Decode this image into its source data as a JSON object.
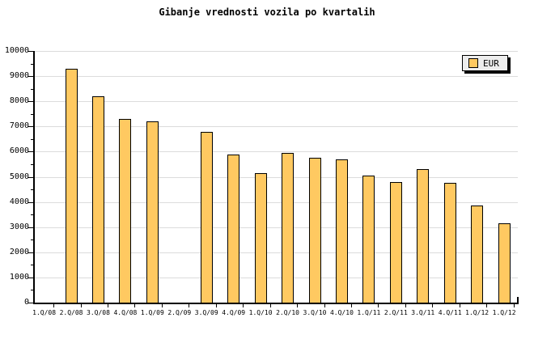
{
  "title": "Gibanje vrednosti vozila po kvartalih",
  "legend": {
    "label": "EUR",
    "position": "top-right"
  },
  "colors": {
    "background": "#FFFFFF",
    "bar_fill": "#FFC961",
    "bar_border": "#000000",
    "gridline": "#DCDCDC",
    "axis": "#000000",
    "legend_bg": "#EDEDED",
    "legend_shadow": "#000000",
    "text": "#000000"
  },
  "chart_data": {
    "type": "bar",
    "title": "Gibanje vrednosti vozila po kvartalih",
    "xlabel": "",
    "ylabel": "",
    "ylim": [
      0,
      10000
    ],
    "yticks": [
      0,
      1000,
      2000,
      3000,
      4000,
      5000,
      6000,
      7000,
      8000,
      9000,
      10000
    ],
    "ytick_minor_step": 500,
    "grid": "horizontal",
    "legend_position": "top-right",
    "categories": [
      "1.Q/08",
      "2.Q/08",
      "3.Q/08",
      "4.Q/08",
      "1.Q/09",
      "2.Q/09",
      "3.Q/09",
      "4.Q/09",
      "1.Q/10",
      "2.Q/10",
      "3.Q/10",
      "4.Q/10",
      "1.Q/11",
      "2.Q/11",
      "3.Q/11",
      "4.Q/11",
      "1.Q/12",
      "1.Q/12"
    ],
    "series": [
      {
        "name": "EUR",
        "values": [
          null,
          9300,
          8200,
          7300,
          7200,
          null,
          6800,
          5900,
          5150,
          5950,
          5750,
          5700,
          5050,
          4800,
          5300,
          4750,
          3850,
          3150
        ]
      }
    ]
  }
}
